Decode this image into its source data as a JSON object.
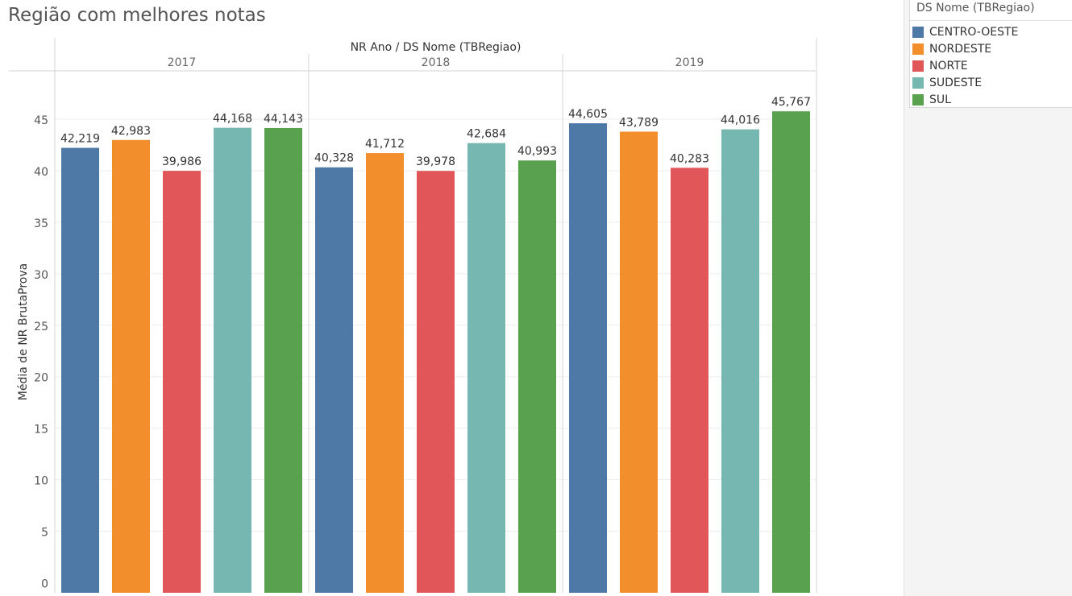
{
  "title": "Região com melhores notas",
  "legend": {
    "title": "DS Nome (TBRegiao)",
    "items": [
      {
        "label": "CENTRO-OESTE",
        "color": "#4e79a7"
      },
      {
        "label": "NORDESTE",
        "color": "#f28e2b"
      },
      {
        "label": "NORTE",
        "color": "#e15759"
      },
      {
        "label": "SUDESTE",
        "color": "#76b7b2"
      },
      {
        "label": "SUL",
        "color": "#59a14f"
      }
    ]
  },
  "chart_data": {
    "type": "bar",
    "header": "NR Ano  /  DS Nome (TBRegiao)",
    "ylabel": "Média de NR BrutaProva",
    "ylim": [
      0,
      48
    ],
    "yticks": [
      0,
      5,
      10,
      15,
      20,
      25,
      30,
      35,
      40,
      45
    ],
    "categories": [
      "2017",
      "2018",
      "2019"
    ],
    "series": [
      {
        "name": "CENTRO-OESTE",
        "values": [
          42.219,
          40.328,
          44.605
        ],
        "labels": [
          "42,219",
          "40,328",
          "44,605"
        ]
      },
      {
        "name": "NORDESTE",
        "values": [
          42.983,
          41.712,
          43.789
        ],
        "labels": [
          "42,983",
          "41,712",
          "43,789"
        ]
      },
      {
        "name": "NORTE",
        "values": [
          39.986,
          39.978,
          40.283
        ],
        "labels": [
          "39,986",
          "39,978",
          "40,283"
        ]
      },
      {
        "name": "SUDESTE",
        "values": [
          44.168,
          42.684,
          44.016
        ],
        "labels": [
          "44,168",
          "42,684",
          "44,016"
        ]
      },
      {
        "name": "SUL",
        "values": [
          44.143,
          40.993,
          45.767
        ],
        "labels": [
          "44,143",
          "40,993",
          "45,767"
        ]
      }
    ]
  }
}
